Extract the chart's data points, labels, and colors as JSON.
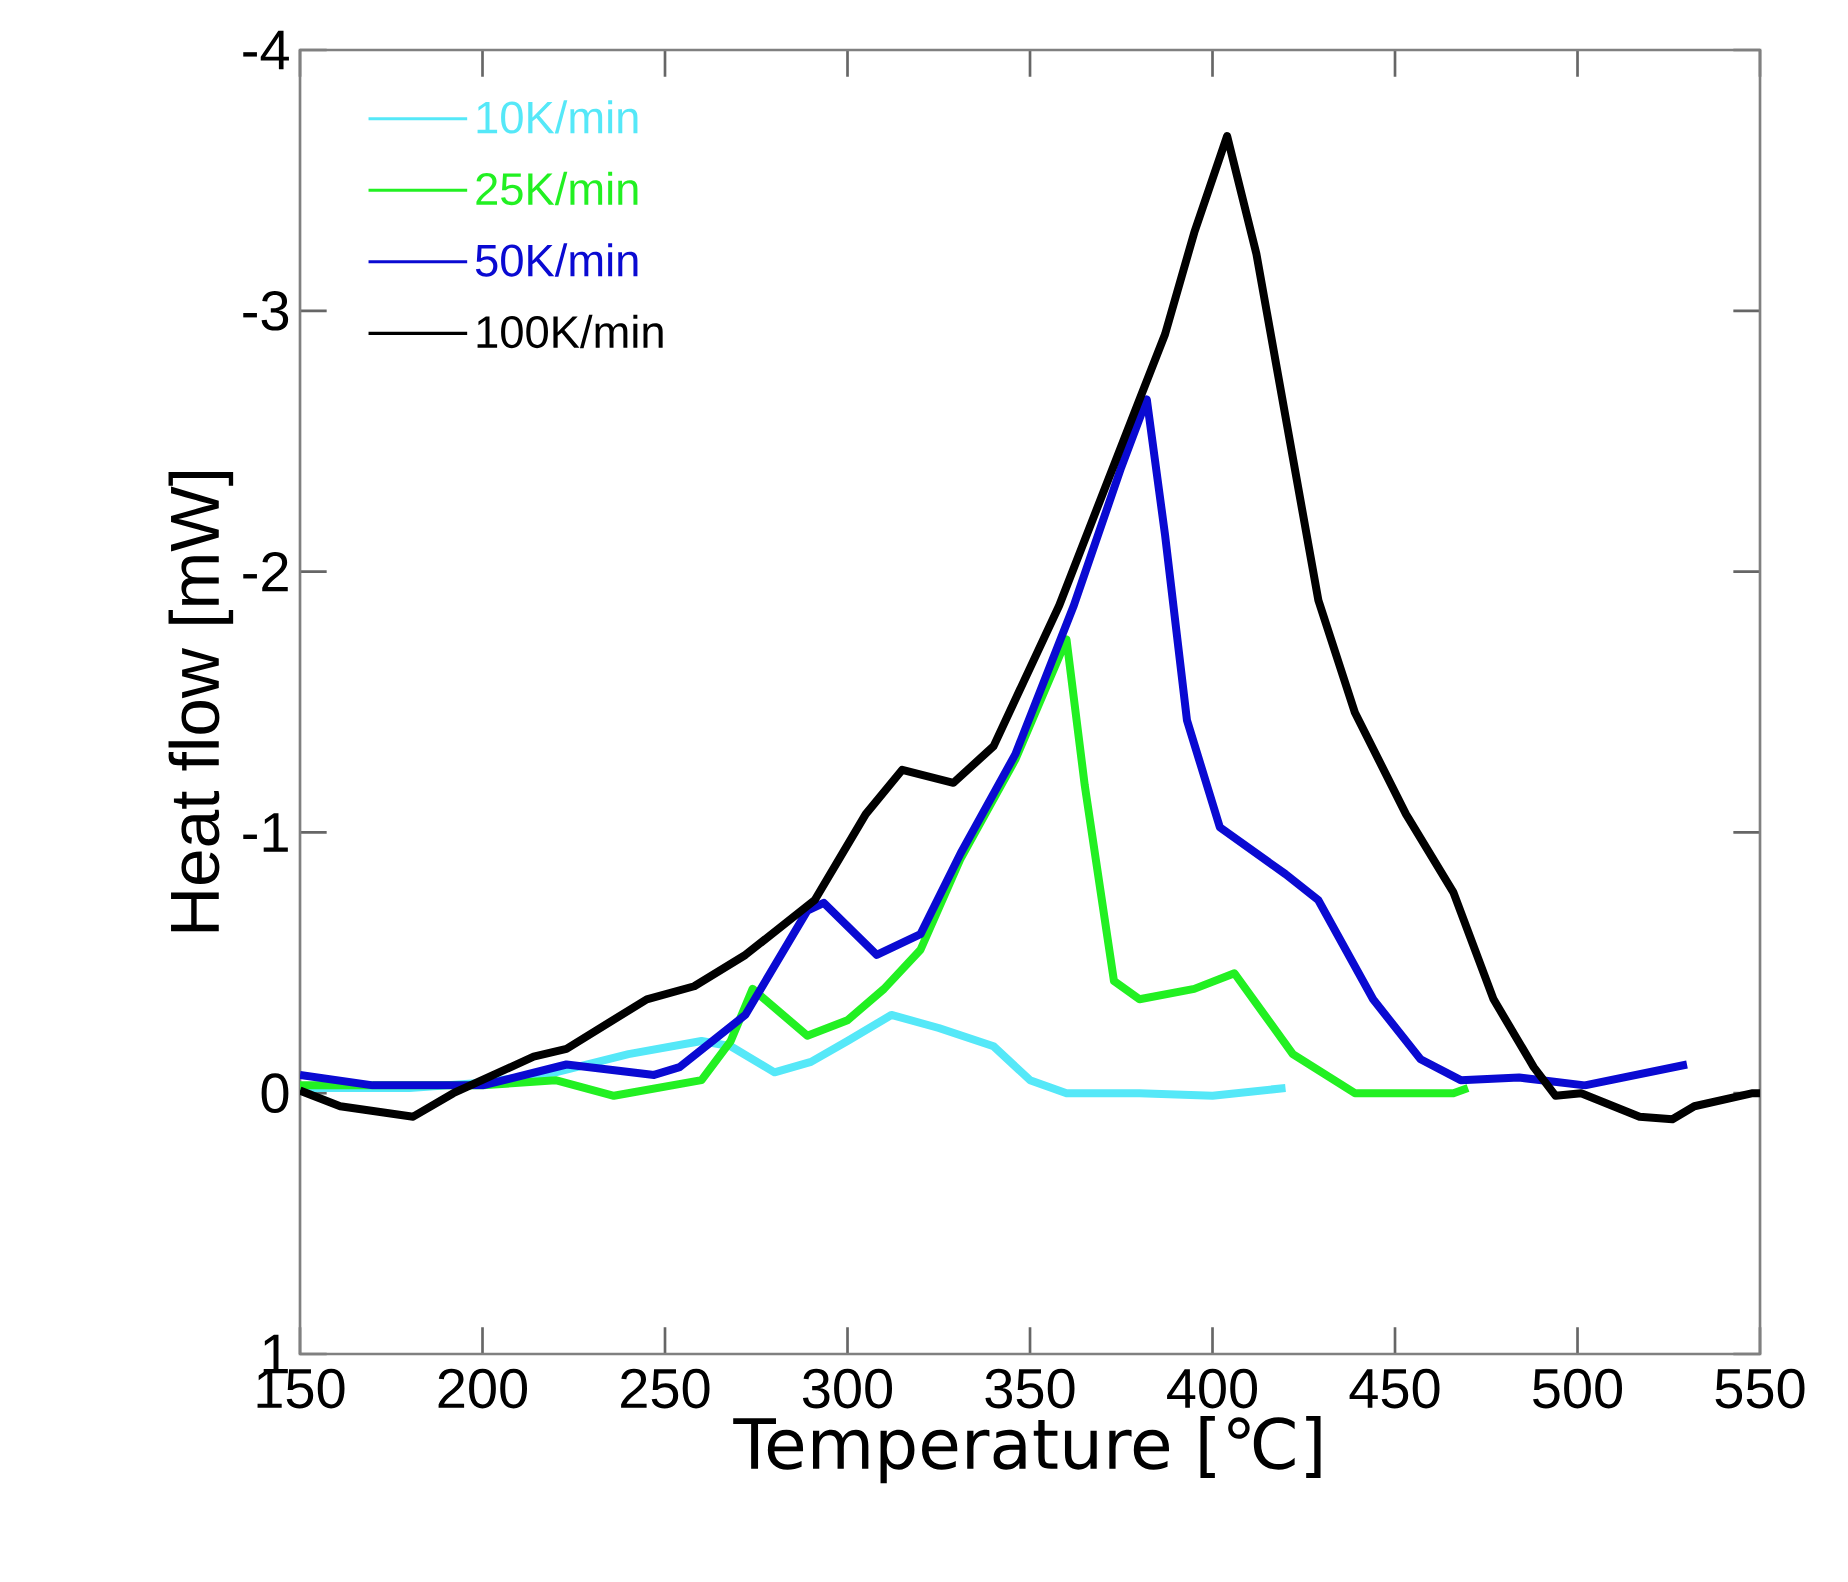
{
  "chart_data": {
    "type": "line",
    "xlabel": "Temperature [℃]",
    "ylabel": "Heat flow [mW]",
    "xlim": [
      150,
      550
    ],
    "xticks": [
      150,
      200,
      250,
      300,
      350,
      400,
      450,
      500,
      550
    ],
    "ylim": [
      1,
      -4
    ],
    "yticks": [
      -4,
      -3,
      -2,
      -1,
      0,
      1
    ],
    "grid": false,
    "legend": "top left",
    "line_style": "solid",
    "marker": "none",
    "series": [
      {
        "name": "10K/min",
        "color": "#55e8f8",
        "x": [
          150,
          180,
          200,
          220,
          240,
          260,
          268,
          280,
          290,
          300,
          312,
          325,
          340,
          350,
          360,
          380,
          400,
          420
        ],
        "values": [
          -0.02,
          -0.02,
          -0.04,
          -0.08,
          -0.15,
          -0.2,
          -0.18,
          -0.08,
          -0.12,
          -0.2,
          -0.3,
          -0.25,
          -0.18,
          -0.05,
          0.0,
          0.0,
          0.01,
          -0.02
        ]
      },
      {
        "name": "25K/min",
        "color": "#22f022",
        "x": [
          150,
          200,
          220,
          236,
          260,
          268,
          274,
          289,
          300,
          310,
          320,
          331,
          346,
          360,
          365,
          373,
          380,
          395,
          406,
          422,
          439,
          466,
          470
        ],
        "values": [
          -0.03,
          -0.03,
          -0.05,
          0.01,
          -0.05,
          -0.2,
          -0.4,
          -0.22,
          -0.28,
          -0.4,
          -0.55,
          -0.9,
          -1.28,
          -1.74,
          -1.18,
          -0.43,
          -0.36,
          -0.4,
          -0.46,
          -0.15,
          0.0,
          0.0,
          -0.02
        ]
      },
      {
        "name": "50K/min",
        "color": "#0a0ad2",
        "x": [
          150,
          170,
          200,
          223,
          247,
          254,
          272,
          289,
          293.5,
          308,
          320,
          331,
          346,
          362,
          375,
          382,
          387,
          393,
          402,
          420,
          429,
          444,
          457,
          468,
          484,
          502,
          530
        ],
        "values": [
          -0.07,
          -0.03,
          -0.03,
          -0.11,
          -0.07,
          -0.1,
          -0.3,
          -0.7,
          -0.73,
          -0.53,
          -0.61,
          -0.92,
          -1.3,
          -1.87,
          -2.4,
          -2.66,
          -2.14,
          -1.43,
          -1.02,
          -0.84,
          -0.74,
          -0.36,
          -0.13,
          -0.05,
          -0.06,
          -0.03,
          -0.11
        ]
      },
      {
        "name": "100K/min",
        "color": "#000000",
        "x": [
          150,
          161,
          181,
          192,
          214,
          223,
          245,
          258,
          272,
          291,
          305,
          315,
          329,
          340,
          358,
          380,
          387,
          395,
          404,
          412,
          429,
          439,
          453,
          466,
          477,
          488,
          494,
          501,
          517,
          526,
          532,
          548,
          550
        ],
        "values": [
          -0.01,
          0.05,
          0.09,
          0.0,
          -0.14,
          -0.17,
          -0.36,
          -0.41,
          -0.53,
          -0.74,
          -1.07,
          -1.24,
          -1.19,
          -1.33,
          -1.87,
          -2.66,
          -2.91,
          -3.3,
          -3.67,
          -3.22,
          -1.89,
          -1.46,
          -1.07,
          -0.77,
          -0.36,
          -0.1,
          0.01,
          0.0,
          0.09,
          0.1,
          0.05,
          0.0,
          0.0
        ]
      }
    ]
  }
}
